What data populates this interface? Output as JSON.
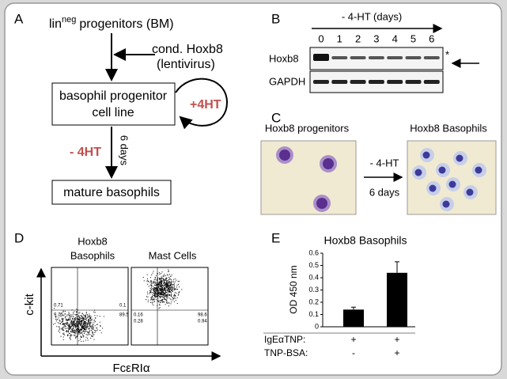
{
  "panels": {
    "a": {
      "label": "A",
      "lin": "lin",
      "neg": "neg",
      "start_rest": "progenitors (BM)",
      "vector": [
        "cond. Hoxb8",
        "(lentivirus)"
      ],
      "cell_line": [
        "basophil progenitor",
        "cell line"
      ],
      "plus": "+4HT",
      "minus": "- 4HT",
      "days": "6 days",
      "end": "mature basophils"
    },
    "b": {
      "label": "B",
      "axis": "- 4-HT (days)",
      "lanes": [
        "0",
        "1",
        "2",
        "3",
        "4",
        "5",
        "6"
      ],
      "rows": [
        "Hoxb8",
        "GAPDH"
      ],
      "star": "*"
    },
    "c": {
      "label": "C",
      "left": "Hoxb8 progenitors",
      "right": "Hoxb8 Basophils",
      "arrow_top": "- 4-HT",
      "arrow_bottom": "6 days"
    },
    "d": {
      "label": "D",
      "left_title": [
        "Hoxb8",
        "Basophils"
      ],
      "right_title": "Mast Cells",
      "y_label": "c-kit",
      "x_label": "FcεRIα",
      "left_quadrants": [
        "0.71",
        "9.75",
        "0.1",
        "89.5"
      ],
      "right_quadrants": [
        "0.16",
        "0.28",
        "98.6",
        "0.94"
      ]
    },
    "e": {
      "label": "E",
      "chart_data": {
        "type": "bar",
        "title": "Hoxb8 Basophils",
        "y_label": "OD 450 nm",
        "values": [
          0.14,
          0.44
        ],
        "errors": [
          0.02,
          0.09
        ],
        "color": "#000000",
        "ylim": [
          0,
          0.6
        ],
        "yticks": [
          0,
          0.1,
          0.2,
          0.3,
          0.4,
          0.5,
          0.6
        ],
        "conditions": [
          {
            "name": "IgEαTNP:",
            "values": [
              "+",
              "+"
            ]
          },
          {
            "name": "TNP-BSA:",
            "values": [
              "-",
              "+"
            ]
          }
        ]
      }
    }
  }
}
